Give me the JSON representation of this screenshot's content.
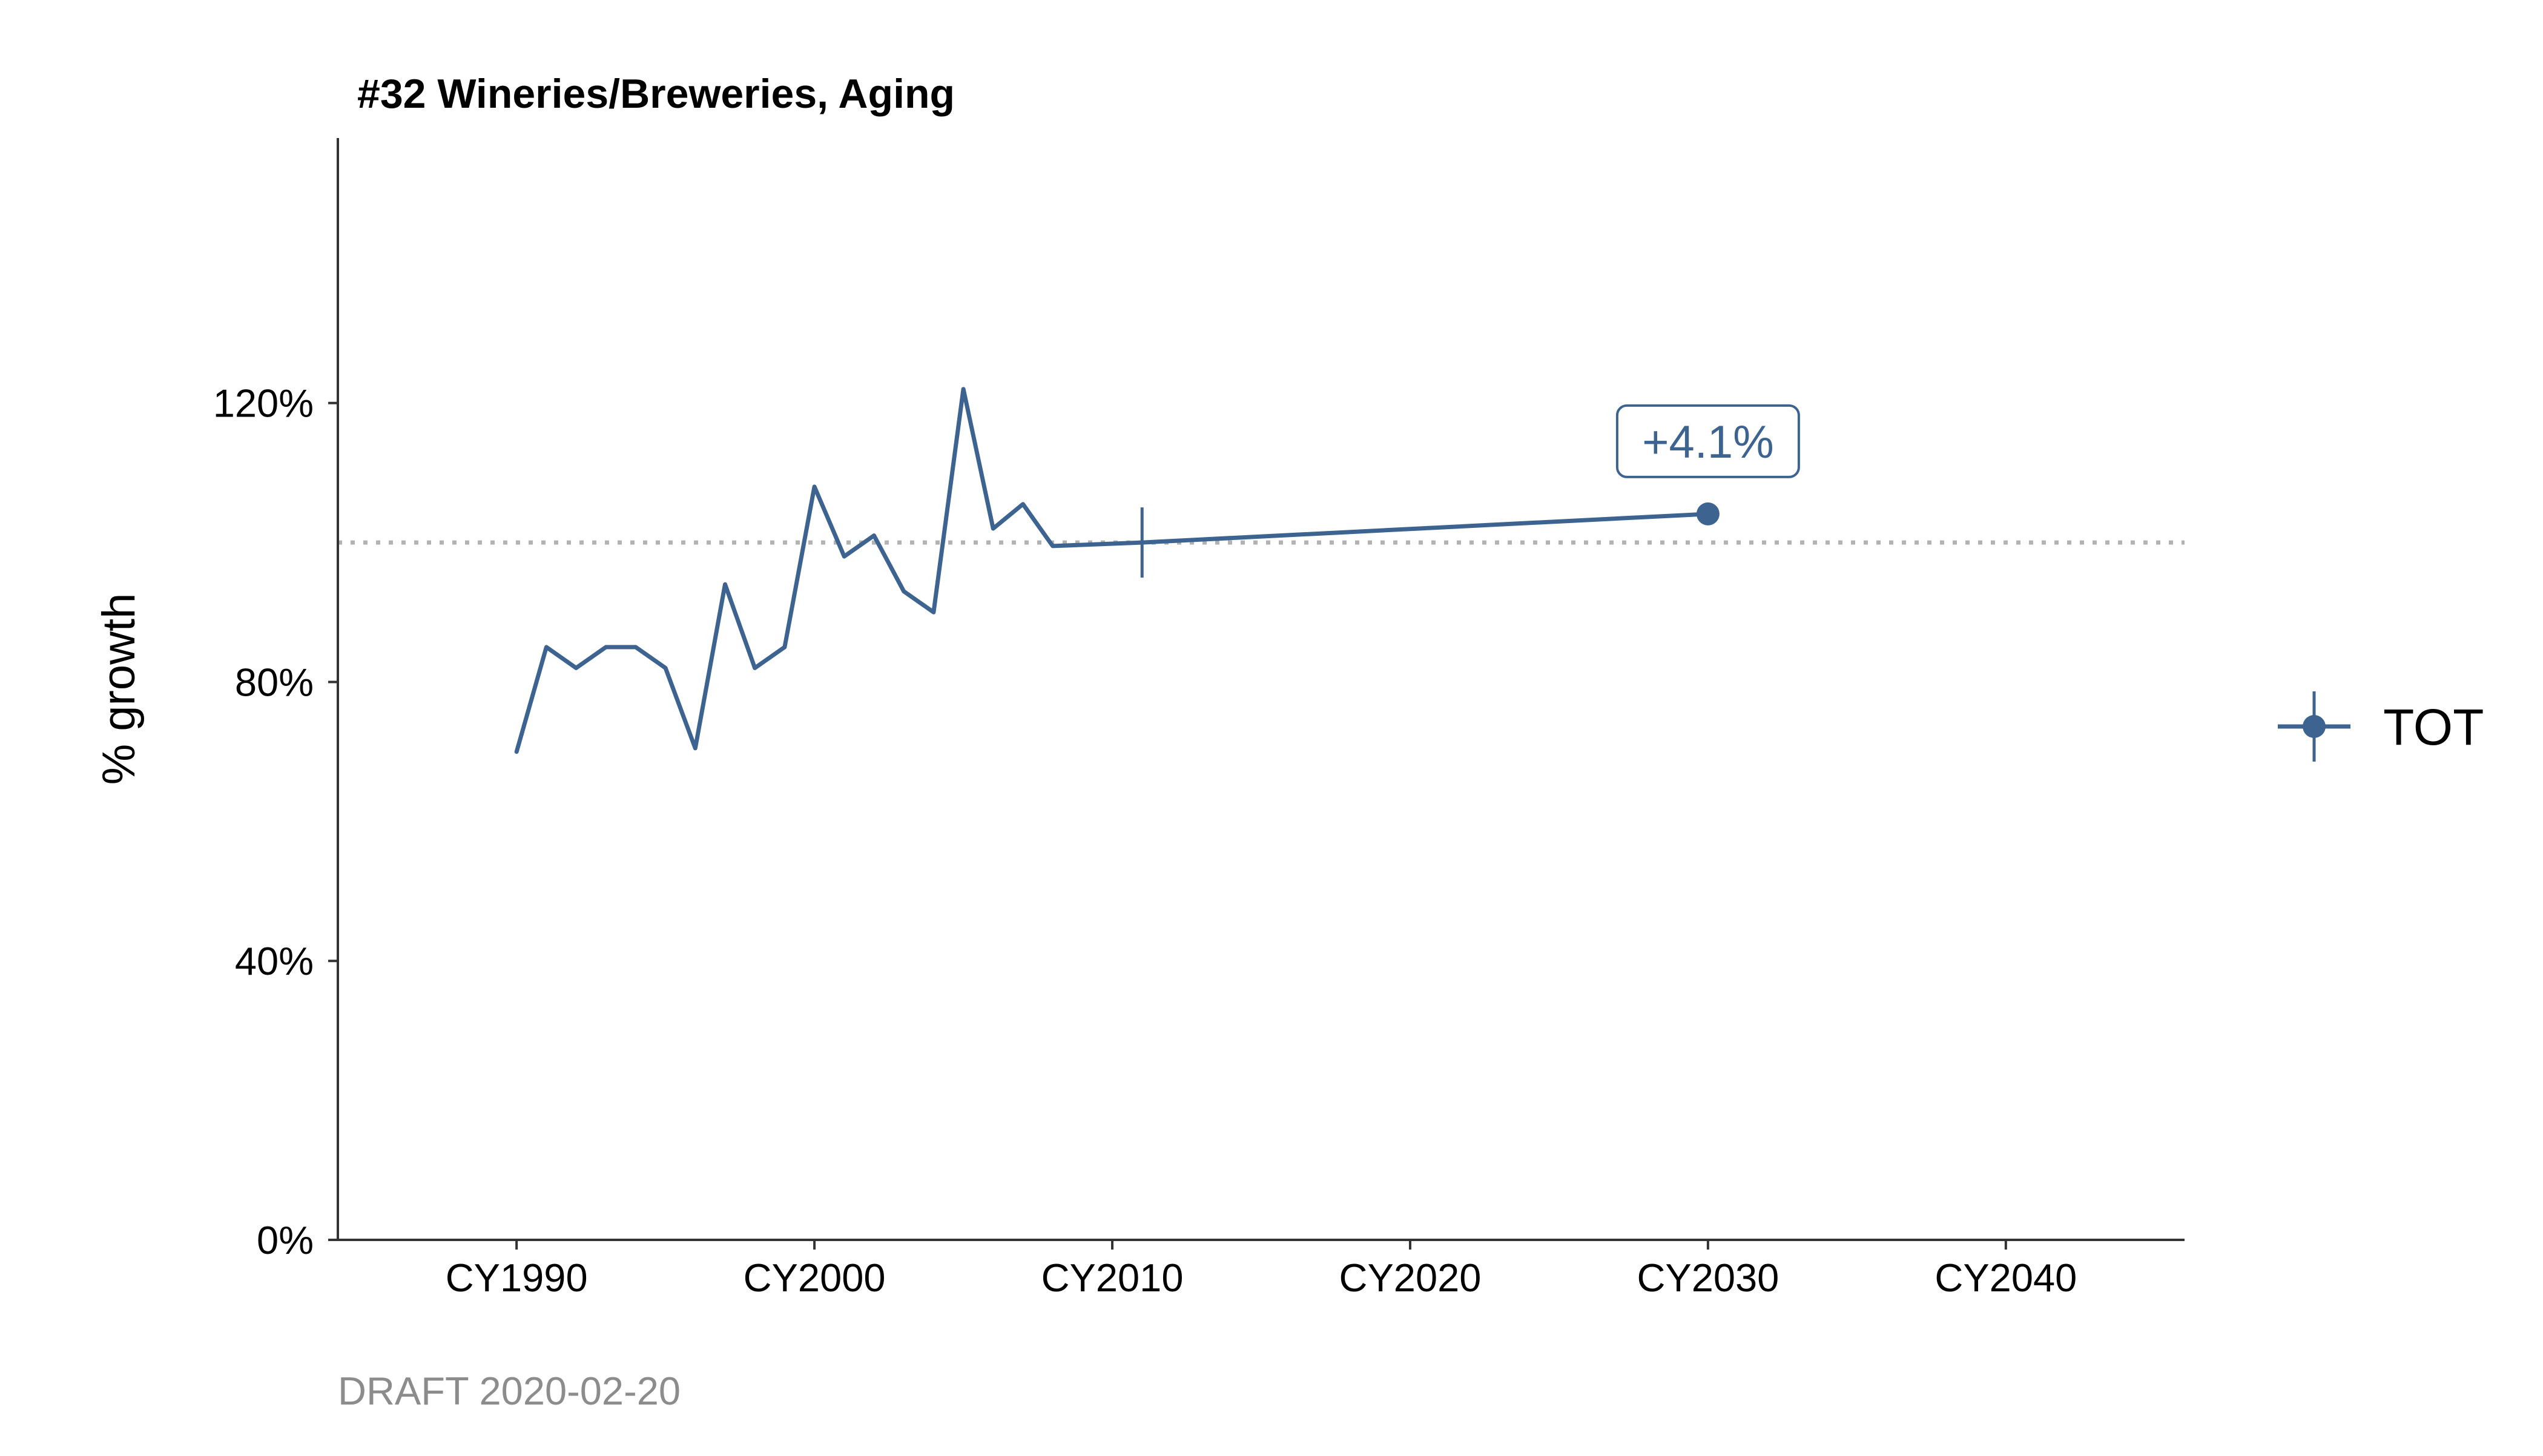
{
  "chart_data": {
    "type": "line",
    "title": "#32 Wineries/Breweries, Aging",
    "xlabel": "",
    "ylabel": "% growth",
    "caption": "DRAFT 2020-02-20",
    "xlim": [
      1984,
      2046
    ],
    "ylim": [
      0,
      158
    ],
    "x_ticks": [
      1990,
      2000,
      2010,
      2020,
      2030,
      2040
    ],
    "x_tick_labels": [
      "CY1990",
      "CY2000",
      "CY2010",
      "CY2020",
      "CY2030",
      "CY2040"
    ],
    "y_ticks": [
      0,
      40,
      80,
      120
    ],
    "y_tick_labels": [
      "0%",
      "40%",
      "80%",
      "120%"
    ],
    "reference_line": {
      "y": 100,
      "style": "dotted",
      "color": "#b3b3b3"
    },
    "grid": false,
    "legend": {
      "position": "right",
      "entries": [
        "TOT"
      ]
    },
    "series": [
      {
        "name": "TOT",
        "color": "#3d6391",
        "x": [
          1990,
          1991,
          1992,
          1993,
          1994,
          1995,
          1996,
          1997,
          1998,
          1999,
          2000,
          2001,
          2002,
          2003,
          2004,
          2005,
          2006,
          2007,
          2008,
          2011,
          2030
        ],
        "y": [
          70,
          85,
          82,
          85,
          85,
          82,
          70.5,
          94,
          82,
          85,
          108,
          98,
          101,
          93,
          90,
          122,
          102,
          105.5,
          99.5,
          100,
          104.1
        ]
      }
    ],
    "marker": {
      "x": 2011,
      "y": 100,
      "type": "vertical-tick"
    },
    "endpoint": {
      "x": 2030,
      "y": 104.1,
      "type": "dot"
    },
    "annotation": {
      "x": 2030,
      "y": 104.1,
      "text": "+4.1%"
    }
  }
}
